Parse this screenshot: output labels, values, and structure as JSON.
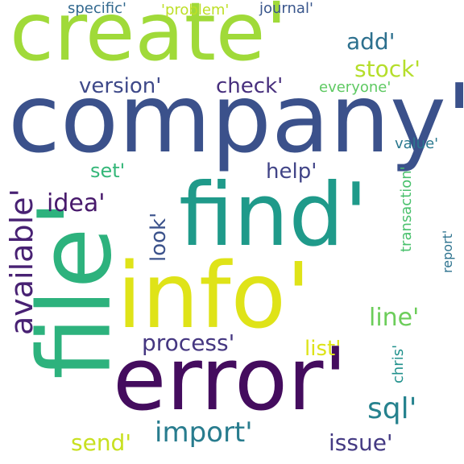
{
  "words": [
    {
      "text": "company'",
      "color": "#3b518b",
      "vertical": false
    },
    {
      "text": "create'",
      "color": "#a0da39",
      "vertical": false
    },
    {
      "text": "find'",
      "color": "#1f9a8a",
      "vertical": false
    },
    {
      "text": "info'",
      "color": "#dfe318",
      "vertical": false
    },
    {
      "text": "error'",
      "color": "#440c5e",
      "vertical": false
    },
    {
      "text": "file'",
      "color": "#2db27d",
      "vertical": true
    },
    {
      "text": "available'",
      "color": "#482173",
      "vertical": true
    },
    {
      "text": "version'",
      "color": "#3e4989",
      "vertical": false
    },
    {
      "text": "check'",
      "color": "#472f7d",
      "vertical": false
    },
    {
      "text": "add'",
      "color": "#2d708e",
      "vertical": false
    },
    {
      "text": "stock'",
      "color": "#b5de2b",
      "vertical": false
    },
    {
      "text": "everyone'",
      "color": "#5ec962",
      "vertical": false
    },
    {
      "text": "specific'",
      "color": "#31688e",
      "vertical": false
    },
    {
      "text": "'problem'",
      "color": "#bddf26",
      "vertical": false
    },
    {
      "text": "journal'",
      "color": "#39568c",
      "vertical": false
    },
    {
      "text": "set'",
      "color": "#35b779",
      "vertical": false
    },
    {
      "text": "help'",
      "color": "#414487",
      "vertical": false
    },
    {
      "text": "value'",
      "color": "#2a788e",
      "vertical": false
    },
    {
      "text": "idea'",
      "color": "#481a6c",
      "vertical": false
    },
    {
      "text": "look'",
      "color": "#3b528b",
      "vertical": true
    },
    {
      "text": "transaction'",
      "color": "#4ac16d",
      "vertical": true
    },
    {
      "text": "report'",
      "color": "#2c728e",
      "vertical": true
    },
    {
      "text": "line'",
      "color": "#6ccd5a",
      "vertical": false
    },
    {
      "text": "process'",
      "color": "#453781",
      "vertical": false
    },
    {
      "text": "list'",
      "color": "#dde318",
      "vertical": false
    },
    {
      "text": "chris'",
      "color": "#21918c",
      "vertical": true
    },
    {
      "text": "sql'",
      "color": "#26828e",
      "vertical": false
    },
    {
      "text": "import'",
      "color": "#287c8e",
      "vertical": false
    },
    {
      "text": "send'",
      "color": "#c8e020",
      "vertical": false
    },
    {
      "text": "issue'",
      "color": "#443a83",
      "vertical": false
    }
  ]
}
